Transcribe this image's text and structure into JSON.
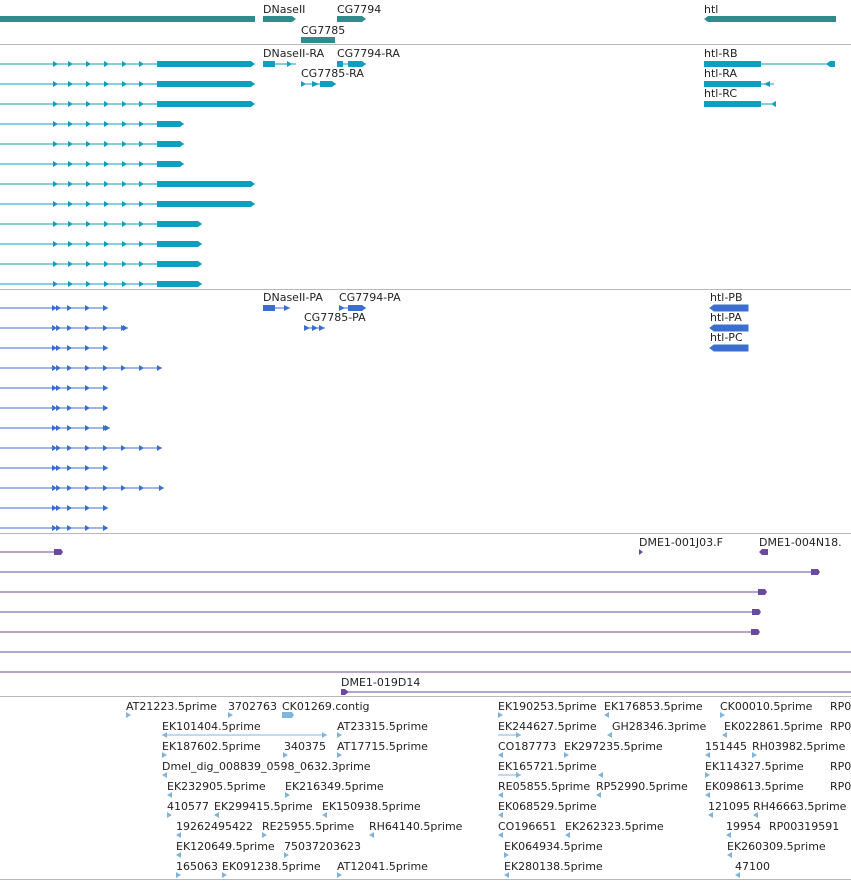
{
  "colors": {
    "gene": "#2e8c8c",
    "transcript": "#0d9fbf",
    "protein": "#3a6fd0",
    "clone": "#6a4a9e",
    "est": "#7fb5dd",
    "separator": "#b8b8b8"
  },
  "tracks": {
    "genes": {
      "labels": {
        "dnaseii": "DNaseII",
        "cg7794": "CG7794",
        "cg7785": "CG7785",
        "htl": "htl"
      }
    },
    "transcripts": {
      "labels": {
        "dnaseii_ra": "DNaseII-RA",
        "cg7794_ra": "CG7794-RA",
        "cg7785_ra": "CG7785-RA",
        "htl_rb": "htl-RB",
        "htl_ra": "htl-RA",
        "htl_rc": "htl-RC"
      }
    },
    "proteins": {
      "labels": {
        "dnaseii_pa": "DNaseII-PA",
        "cg7794_pa": "CG7794-PA",
        "cg7785_pa": "CG7785-PA",
        "htl_pb": "htl-PB",
        "htl_pa": "htl-PA",
        "htl_pc": "htl-PC"
      }
    },
    "clones": {
      "labels": {
        "c1": "DME1-001J03.F",
        "c2": "DME1-004N18.",
        "c3": "DME1-019D14"
      }
    },
    "ests": {
      "labels": [
        "AT21223.5prime",
        "3702763",
        "CK01269.contig",
        "EK101404.5prime",
        "AT23315.5prime",
        "EK187602.5prime",
        "340375",
        "AT17715.5prime",
        "Dmel_dig_008839_0598_0632.3prime",
        "EK232905.5prime",
        "EK216349.5prime",
        "410577",
        "EK299415.5prime",
        "EK150938.5prime",
        "19262495422",
        "RE25955.5prime",
        "RH64140.5prime",
        "EK120649.5prime",
        "75037203623",
        "165063",
        "EK091238.5prime",
        "AT12041.5prime",
        "EK190253.5prime",
        "EK176853.5prime",
        "CK00010.5prime",
        "RP0",
        "EK244627.5prime",
        "GH28346.3prime",
        "EK022861.5prime",
        "RP0",
        "CO187773",
        "EK297235.5prime",
        "151445",
        "RH03982.5prime",
        "EK165721.5prime",
        "EK114327.5prime",
        "RP0",
        "RE05855.5prime",
        "RP52990.5prime",
        "EK098613.5prime",
        "RP0",
        "EK068529.5prime",
        "121095",
        "RH46663.5prime",
        "CO196651",
        "EK262323.5prime",
        "19954",
        "RP00319591",
        "EK064934.5prime",
        "EK260309.5prime",
        "EK280138.5prime",
        "47100"
      ]
    }
  }
}
